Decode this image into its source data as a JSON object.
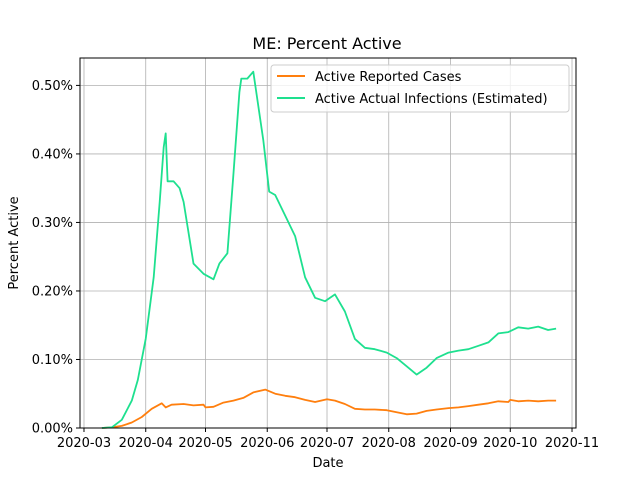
{
  "chart_data": {
    "type": "line",
    "title": "ME: Percent Active",
    "xlabel": "Date",
    "ylabel": "Percent Active",
    "xlim": [
      "2020-02-28",
      "2020-11-03"
    ],
    "ylim": [
      0,
      0.0054
    ],
    "x_ticks": [
      "2020-03",
      "2020-04",
      "2020-05",
      "2020-06",
      "2020-07",
      "2020-08",
      "2020-09",
      "2020-10",
      "2020-11"
    ],
    "y_ticks": [
      0.0,
      0.001,
      0.002,
      0.003,
      0.004,
      0.005
    ],
    "y_tick_labels": [
      "0.00%",
      "0.10%",
      "0.20%",
      "0.30%",
      "0.40%",
      "0.50%"
    ],
    "grid": true,
    "legend_position": "top-right",
    "series": [
      {
        "name": "Active Reported Cases",
        "color": "#ff7f0e",
        "points": [
          [
            "2020-03-10",
            0.0
          ],
          [
            "2020-03-15",
            1e-05
          ],
          [
            "2020-03-20",
            3e-05
          ],
          [
            "2020-03-25",
            8e-05
          ],
          [
            "2020-03-30",
            0.00016
          ],
          [
            "2020-04-04",
            0.00028
          ],
          [
            "2020-04-09",
            0.00036
          ],
          [
            "2020-04-11",
            0.0003
          ],
          [
            "2020-04-14",
            0.00034
          ],
          [
            "2020-04-20",
            0.00035
          ],
          [
            "2020-04-25",
            0.00033
          ],
          [
            "2020-04-30",
            0.00034
          ],
          [
            "2020-05-01",
            0.0003
          ],
          [
            "2020-05-05",
            0.00031
          ],
          [
            "2020-05-10",
            0.00037
          ],
          [
            "2020-05-15",
            0.0004
          ],
          [
            "2020-05-20",
            0.00044
          ],
          [
            "2020-05-25",
            0.00052
          ],
          [
            "2020-05-31",
            0.00056
          ],
          [
            "2020-06-05",
            0.0005
          ],
          [
            "2020-06-10",
            0.00047
          ],
          [
            "2020-06-15",
            0.00045
          ],
          [
            "2020-06-20",
            0.00041
          ],
          [
            "2020-06-25",
            0.00038
          ],
          [
            "2020-07-01",
            0.00042
          ],
          [
            "2020-07-05",
            0.0004
          ],
          [
            "2020-07-10",
            0.00035
          ],
          [
            "2020-07-15",
            0.00028
          ],
          [
            "2020-07-20",
            0.00027
          ],
          [
            "2020-07-25",
            0.00027
          ],
          [
            "2020-07-31",
            0.00026
          ],
          [
            "2020-08-05",
            0.00023
          ],
          [
            "2020-08-10",
            0.0002
          ],
          [
            "2020-08-15",
            0.00021
          ],
          [
            "2020-08-20",
            0.00025
          ],
          [
            "2020-08-25",
            0.00027
          ],
          [
            "2020-08-31",
            0.00029
          ],
          [
            "2020-09-05",
            0.0003
          ],
          [
            "2020-09-10",
            0.00032
          ],
          [
            "2020-09-15",
            0.00034
          ],
          [
            "2020-09-20",
            0.00036
          ],
          [
            "2020-09-25",
            0.00039
          ],
          [
            "2020-09-30",
            0.00038
          ],
          [
            "2020-10-01",
            0.00041
          ],
          [
            "2020-10-05",
            0.00039
          ],
          [
            "2020-10-10",
            0.0004
          ],
          [
            "2020-10-15",
            0.00039
          ],
          [
            "2020-10-20",
            0.0004
          ],
          [
            "2020-10-24",
            0.0004
          ]
        ]
      },
      {
        "name": "Active Actual Infections (Estimated)",
        "color": "#1ee08f",
        "points": [
          [
            "2020-03-10",
            0.0
          ],
          [
            "2020-03-15",
            1e-05
          ],
          [
            "2020-03-20",
            0.00012
          ],
          [
            "2020-03-25",
            0.0004
          ],
          [
            "2020-03-28",
            0.0007
          ],
          [
            "2020-04-01",
            0.0013
          ],
          [
            "2020-04-05",
            0.0022
          ],
          [
            "2020-04-08",
            0.0033
          ],
          [
            "2020-04-10",
            0.0041
          ],
          [
            "2020-04-11",
            0.0043
          ],
          [
            "2020-04-12",
            0.0036
          ],
          [
            "2020-04-15",
            0.0036
          ],
          [
            "2020-04-18",
            0.0035
          ],
          [
            "2020-04-20",
            0.0033
          ],
          [
            "2020-04-25",
            0.0024
          ],
          [
            "2020-04-30",
            0.00225
          ],
          [
            "2020-05-05",
            0.00217
          ],
          [
            "2020-05-08",
            0.0024
          ],
          [
            "2020-05-12",
            0.00255
          ],
          [
            "2020-05-15",
            0.0037
          ],
          [
            "2020-05-18",
            0.0049
          ],
          [
            "2020-05-19",
            0.0051
          ],
          [
            "2020-05-22",
            0.0051
          ],
          [
            "2020-05-25",
            0.0052
          ],
          [
            "2020-05-30",
            0.0042
          ],
          [
            "2020-06-02",
            0.00345
          ],
          [
            "2020-06-05",
            0.0034
          ],
          [
            "2020-06-10",
            0.0031
          ],
          [
            "2020-06-15",
            0.0028
          ],
          [
            "2020-06-20",
            0.0022
          ],
          [
            "2020-06-25",
            0.0019
          ],
          [
            "2020-06-30",
            0.00185
          ],
          [
            "2020-07-05",
            0.00195
          ],
          [
            "2020-07-10",
            0.0017
          ],
          [
            "2020-07-15",
            0.0013
          ],
          [
            "2020-07-20",
            0.00117
          ],
          [
            "2020-07-25",
            0.00115
          ],
          [
            "2020-07-31",
            0.0011
          ],
          [
            "2020-08-05",
            0.00102
          ],
          [
            "2020-08-10",
            0.0009
          ],
          [
            "2020-08-15",
            0.00078
          ],
          [
            "2020-08-20",
            0.00088
          ],
          [
            "2020-08-25",
            0.00102
          ],
          [
            "2020-08-31",
            0.0011
          ],
          [
            "2020-09-05",
            0.00113
          ],
          [
            "2020-09-10",
            0.00115
          ],
          [
            "2020-09-15",
            0.0012
          ],
          [
            "2020-09-20",
            0.00125
          ],
          [
            "2020-09-25",
            0.00138
          ],
          [
            "2020-09-30",
            0.0014
          ],
          [
            "2020-10-05",
            0.00147
          ],
          [
            "2020-10-10",
            0.00145
          ],
          [
            "2020-10-15",
            0.00148
          ],
          [
            "2020-10-20",
            0.00143
          ],
          [
            "2020-10-24",
            0.00145
          ]
        ]
      }
    ]
  }
}
